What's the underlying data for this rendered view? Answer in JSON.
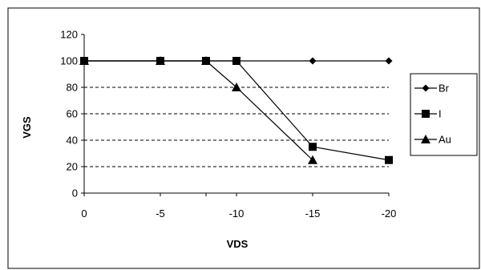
{
  "chart_data": {
    "type": "line",
    "title": "",
    "xlabel": "VDS",
    "ylabel": "VGS",
    "categories": [
      "0",
      "-5",
      "-8",
      "-10",
      "-15",
      "-20"
    ],
    "x_ticks": [
      "0",
      "-5",
      "-10",
      "-15",
      "-20"
    ],
    "x": [
      0,
      -5,
      -8,
      -10,
      -15,
      -20
    ],
    "xlim": [
      0,
      -20
    ],
    "ylim": [
      0,
      120
    ],
    "y_ticks": [
      0,
      20,
      40,
      60,
      80,
      100,
      120
    ],
    "grid": "horizontal dashed",
    "legend_position": "right",
    "series": [
      {
        "name": "Br",
        "marker": "diamond",
        "points": [
          [
            0,
            100
          ],
          [
            -5,
            100
          ],
          [
            -8,
            100
          ],
          [
            -10,
            100
          ],
          [
            -15,
            100
          ],
          [
            -20,
            100
          ]
        ]
      },
      {
        "name": "I",
        "marker": "square",
        "points": [
          [
            0,
            100
          ],
          [
            -5,
            100
          ],
          [
            -8,
            100
          ],
          [
            -10,
            100
          ],
          [
            -15,
            35
          ],
          [
            -20,
            25
          ]
        ]
      },
      {
        "name": "Au",
        "marker": "triangle",
        "points": [
          [
            0,
            100
          ],
          [
            -5,
            100
          ],
          [
            -8,
            100
          ],
          [
            -10,
            80
          ],
          [
            -15,
            25
          ]
        ]
      }
    ]
  },
  "colors": {
    "line": "#000000",
    "grid": "#000000",
    "border": "#000000"
  }
}
